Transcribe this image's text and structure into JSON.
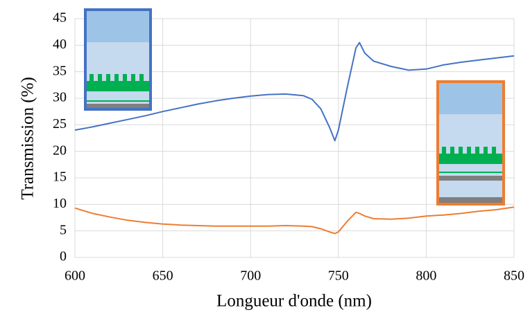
{
  "chart_data": {
    "type": "line",
    "x_label": "Longueur d'onde (nm)",
    "y_label": "Transmission (%)",
    "x": [
      600,
      610,
      620,
      630,
      640,
      650,
      660,
      670,
      680,
      690,
      700,
      710,
      720,
      730,
      735,
      740,
      745,
      748,
      750,
      755,
      760,
      762,
      765,
      770,
      780,
      790,
      800,
      810,
      820,
      830,
      840,
      850
    ],
    "series": [
      {
        "color": "#4472c4",
        "values": [
          24,
          24.6,
          25.3,
          26,
          26.7,
          27.5,
          28.2,
          28.9,
          29.5,
          30,
          30.4,
          30.7,
          30.8,
          30.5,
          29.8,
          28,
          24.5,
          22,
          24,
          32,
          39.5,
          40.5,
          38.5,
          37,
          36,
          35.3,
          35.5,
          36.3,
          36.8,
          37.2,
          37.6,
          38
        ]
      },
      {
        "color": "#ed7d31",
        "values": [
          9.3,
          8.3,
          7.6,
          7,
          6.6,
          6.3,
          6.1,
          6,
          5.9,
          5.9,
          5.9,
          5.9,
          6,
          5.9,
          5.8,
          5.4,
          4.8,
          4.5,
          4.8,
          6.8,
          8.5,
          8.3,
          7.8,
          7.3,
          7.2,
          7.4,
          7.8,
          8,
          8.3,
          8.7,
          9,
          9.5
        ]
      }
    ],
    "xlim": [
      600,
      850
    ],
    "xticks": [
      600,
      650,
      700,
      750,
      800,
      850
    ],
    "ylim": [
      0,
      45
    ],
    "yticks": [
      0,
      5,
      10,
      15,
      20,
      25,
      30,
      35,
      40,
      45
    ],
    "grid": true
  }
}
